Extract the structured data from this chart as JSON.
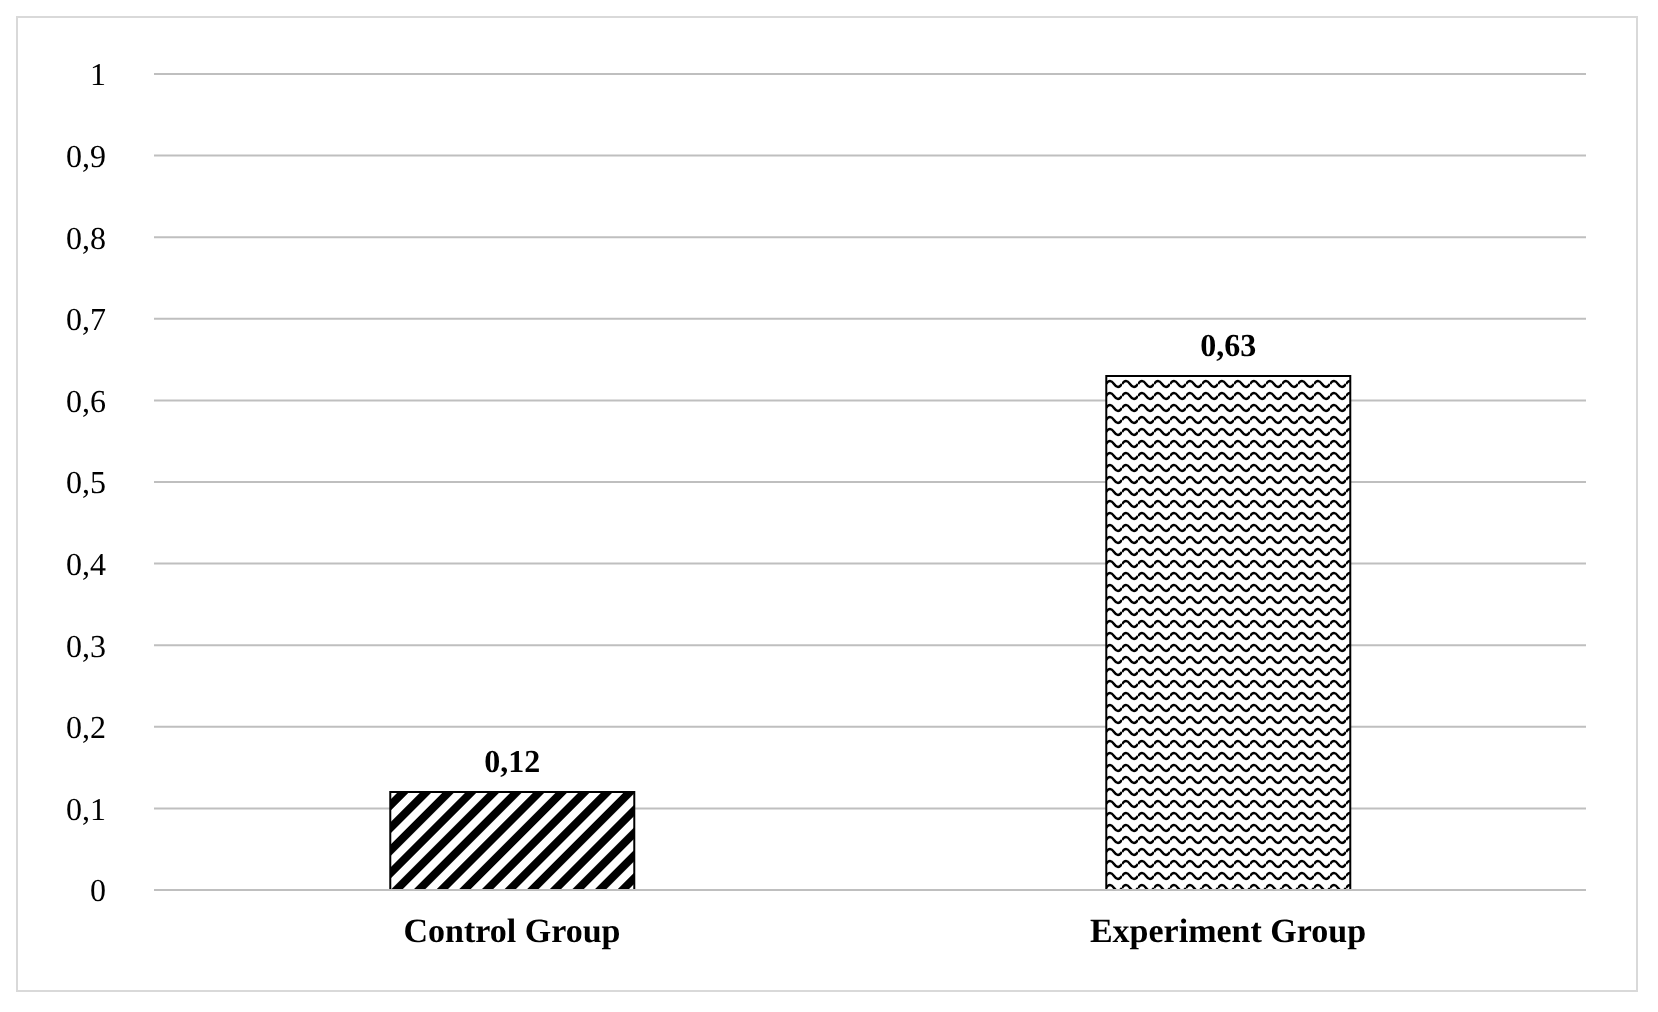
{
  "chart_data": {
    "type": "bar",
    "categories": [
      "Control Group",
      "Experiment Group"
    ],
    "values": [
      0.12,
      0.63
    ],
    "colors": [
      "#000000",
      "#000000"
    ],
    "value_labels": [
      "0,12",
      "0,63"
    ],
    "ylim": [
      0,
      1
    ],
    "yticks": [
      0,
      {
        "value": 0.1,
        "label": "0,1"
      },
      {
        "value": 0.2,
        "label": "0,2"
      },
      {
        "value": 0.3,
        "label": "0,3"
      },
      {
        "value": 0.4,
        "label": "0,4"
      },
      {
        "value": 0.5,
        "label": "0,5"
      },
      {
        "value": 0.6,
        "label": "0,6"
      },
      {
        "value": 0.7,
        "label": "0,7"
      },
      {
        "value": 0.8,
        "label": "0,8"
      },
      {
        "value": 0.9,
        "label": "0,9"
      },
      1
    ],
    "grid": "y",
    "legend": false
  }
}
